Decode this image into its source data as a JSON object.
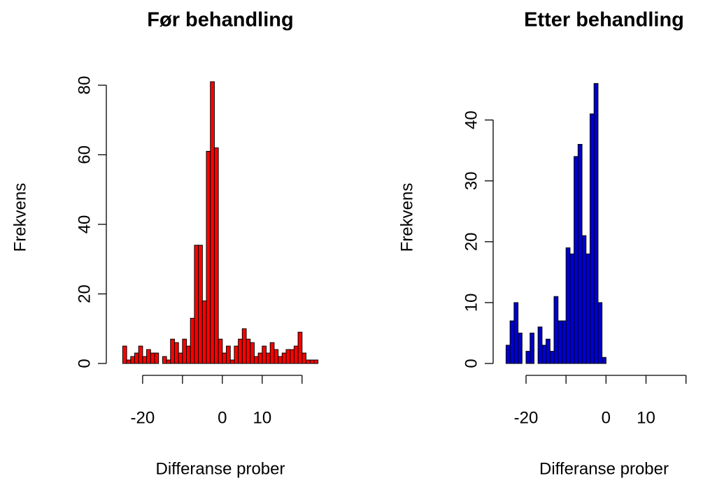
{
  "chart_data": [
    {
      "type": "histogram",
      "title": "Før behandling",
      "xlabel": "Differanse prober",
      "ylabel": "Frekvens",
      "color": "#ff0000",
      "bins": [
        -25,
        -24,
        -23,
        -22,
        -21,
        -20,
        -19,
        -18,
        -17,
        -16,
        -15,
        -14,
        -13,
        -12,
        -11,
        -10,
        -9,
        -8,
        -7,
        -6,
        -5,
        -4,
        -3,
        -2,
        -1,
        0,
        1,
        2,
        3,
        4,
        5,
        6,
        7,
        8,
        9,
        10,
        11,
        12,
        13,
        14,
        15,
        16,
        17,
        18,
        19,
        20,
        21,
        22,
        23,
        24
      ],
      "values": [
        5,
        1,
        2,
        3,
        5,
        2,
        4,
        3,
        3,
        0,
        2,
        1,
        7,
        6,
        3,
        7,
        5,
        13,
        34,
        34,
        18,
        61,
        81,
        62,
        7,
        3,
        5,
        1,
        5,
        7,
        10,
        7,
        6,
        2,
        3,
        5,
        3,
        6,
        4,
        2,
        3,
        4,
        4,
        5,
        9,
        3,
        1,
        1,
        1
      ],
      "xlim": [
        -27,
        26
      ],
      "ylim": [
        0,
        84
      ],
      "xticks": [
        -20,
        {
          "value": -10,
          "label": null
        },
        0,
        10,
        {
          "value": 20,
          "label": null
        }
      ],
      "yticks": [
        0,
        20,
        40,
        60,
        80
      ]
    },
    {
      "type": "histogram",
      "title": "Etter behandling",
      "xlabel": "Differanse prober",
      "ylabel": "Frekvens",
      "color": "#0000cd",
      "bins": [
        -25,
        -24,
        -23,
        -22,
        -21,
        -20,
        -19,
        -18,
        -17,
        -16,
        -15,
        -14,
        -13,
        -12,
        -11,
        -10,
        -9,
        -8,
        -7,
        -6,
        -5,
        -4,
        -3,
        -2,
        -1,
        0
      ],
      "values": [
        3,
        7,
        10,
        5,
        0,
        2,
        5,
        0,
        6,
        3,
        4,
        2,
        11,
        7,
        7,
        19,
        18,
        34,
        36,
        21,
        18,
        41,
        46,
        10,
        1
      ],
      "xlim": [
        -27,
        26
      ],
      "ylim": [
        0,
        48
      ],
      "xticks": [
        -20,
        {
          "value": -10,
          "label": null
        },
        0,
        10,
        {
          "value": 20,
          "label": null
        }
      ],
      "yticks": [
        0,
        10,
        20,
        30,
        40
      ]
    }
  ]
}
